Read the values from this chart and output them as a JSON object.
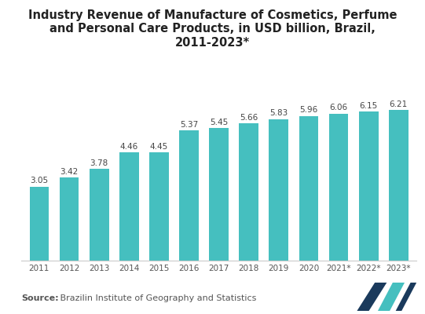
{
  "title": "Industry Revenue of Manufacture of Cosmetics, Perfume\nand Personal Care Products, in USD billion, Brazil,\n2011-2023*",
  "categories": [
    "2011",
    "2012",
    "2013",
    "2014",
    "2015",
    "2016",
    "2017",
    "2018",
    "2019",
    "2020",
    "2021*",
    "2022*",
    "2023*"
  ],
  "values": [
    3.05,
    3.42,
    3.78,
    4.46,
    4.45,
    5.37,
    5.45,
    5.66,
    5.83,
    5.96,
    6.06,
    6.15,
    6.21
  ],
  "bar_color": "#45bfbf",
  "background_color": "#ffffff",
  "title_fontsize": 10.5,
  "label_fontsize": 7.5,
  "tick_fontsize": 7.5,
  "source_bold": "Source:",
  "source_normal": " Brazilin Institute of Geography and Statistics",
  "source_fontsize": 8.0,
  "ylim": [
    0,
    7.5
  ],
  "bar_width": 0.65
}
